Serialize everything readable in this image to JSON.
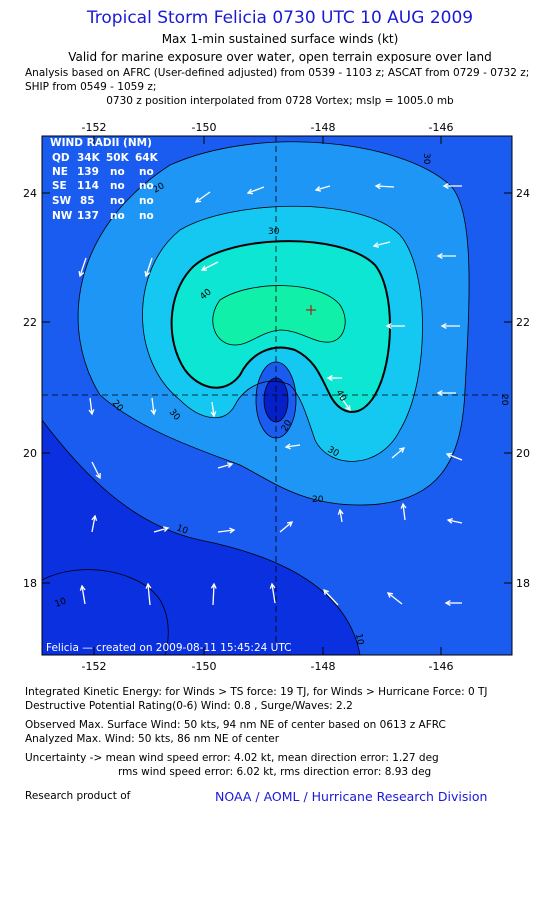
{
  "header": {
    "title": "Tropical Storm Felicia 0730 UTC 10 AUG 2009",
    "subtitle": "Max 1-min sustained surface winds (kt)",
    "validity": "Valid for marine exposure over water, open terrain exposure over land",
    "analysis_line1": "Analysis based on  AFRC (User-defined adjusted) from 0539 - 1103 z;  ASCAT from 0729 - 0732 z;",
    "analysis_line2": "SHIP from 0549 - 1059 z;",
    "position_line": "0730 z position interpolated from 0728 Vortex; mslp = 1005.0 mb"
  },
  "map": {
    "lon_ticks": [
      "-152",
      "-150",
      "-148",
      "-146"
    ],
    "lat_ticks": [
      "24",
      "22",
      "20",
      "18"
    ],
    "wind_radii": {
      "title": "WIND RADII (NM)",
      "header": [
        "QD",
        "34K",
        "50K",
        "64K"
      ],
      "rows": [
        [
          "NE",
          "139",
          "no",
          "no"
        ],
        [
          "SE",
          "114",
          "no",
          "no"
        ],
        [
          "SW",
          "85",
          "no",
          "no"
        ],
        [
          "NW",
          "137",
          "no",
          "no"
        ]
      ]
    },
    "contour_labels": [
      "10",
      "20",
      "30",
      "40"
    ],
    "footer_caption": "Felicia — created on 2009-08-11 15:45:24 UTC",
    "colors": {
      "deep": "#0a30e0",
      "level10": "#1b5cf0",
      "level20": "#1e96f5",
      "level30": "#14c8f2",
      "level40": "#0de6d2",
      "level45": "#10f0a8",
      "core": "#0520c8"
    }
  },
  "bottom": {
    "ike": "Integrated Kinetic Energy:  for Winds > TS force: 19 TJ,  for Winds > Hurricane Force: 0 TJ",
    "dpr": "Destructive Potential Rating(0-6)   Wind: 0.8 , Surge/Waves: 2.2",
    "observed": "Observed Max. Surface Wind: 50 kts, 94 nm NE of center based on 0613 z AFRC",
    "analyzed": "Analyzed Max. Wind: 50 kts, 86 nm NE of center",
    "uncertainty1": "Uncertainty -> mean wind speed error: 4.02 kt,   mean direction error: 1.27 deg",
    "uncertainty2": "rms wind speed error: 6.02 kt,   rms direction error: 8.93 deg",
    "research_label": "Research product of",
    "research_org": "NOAA / AOML / Hurricane Research Division"
  }
}
